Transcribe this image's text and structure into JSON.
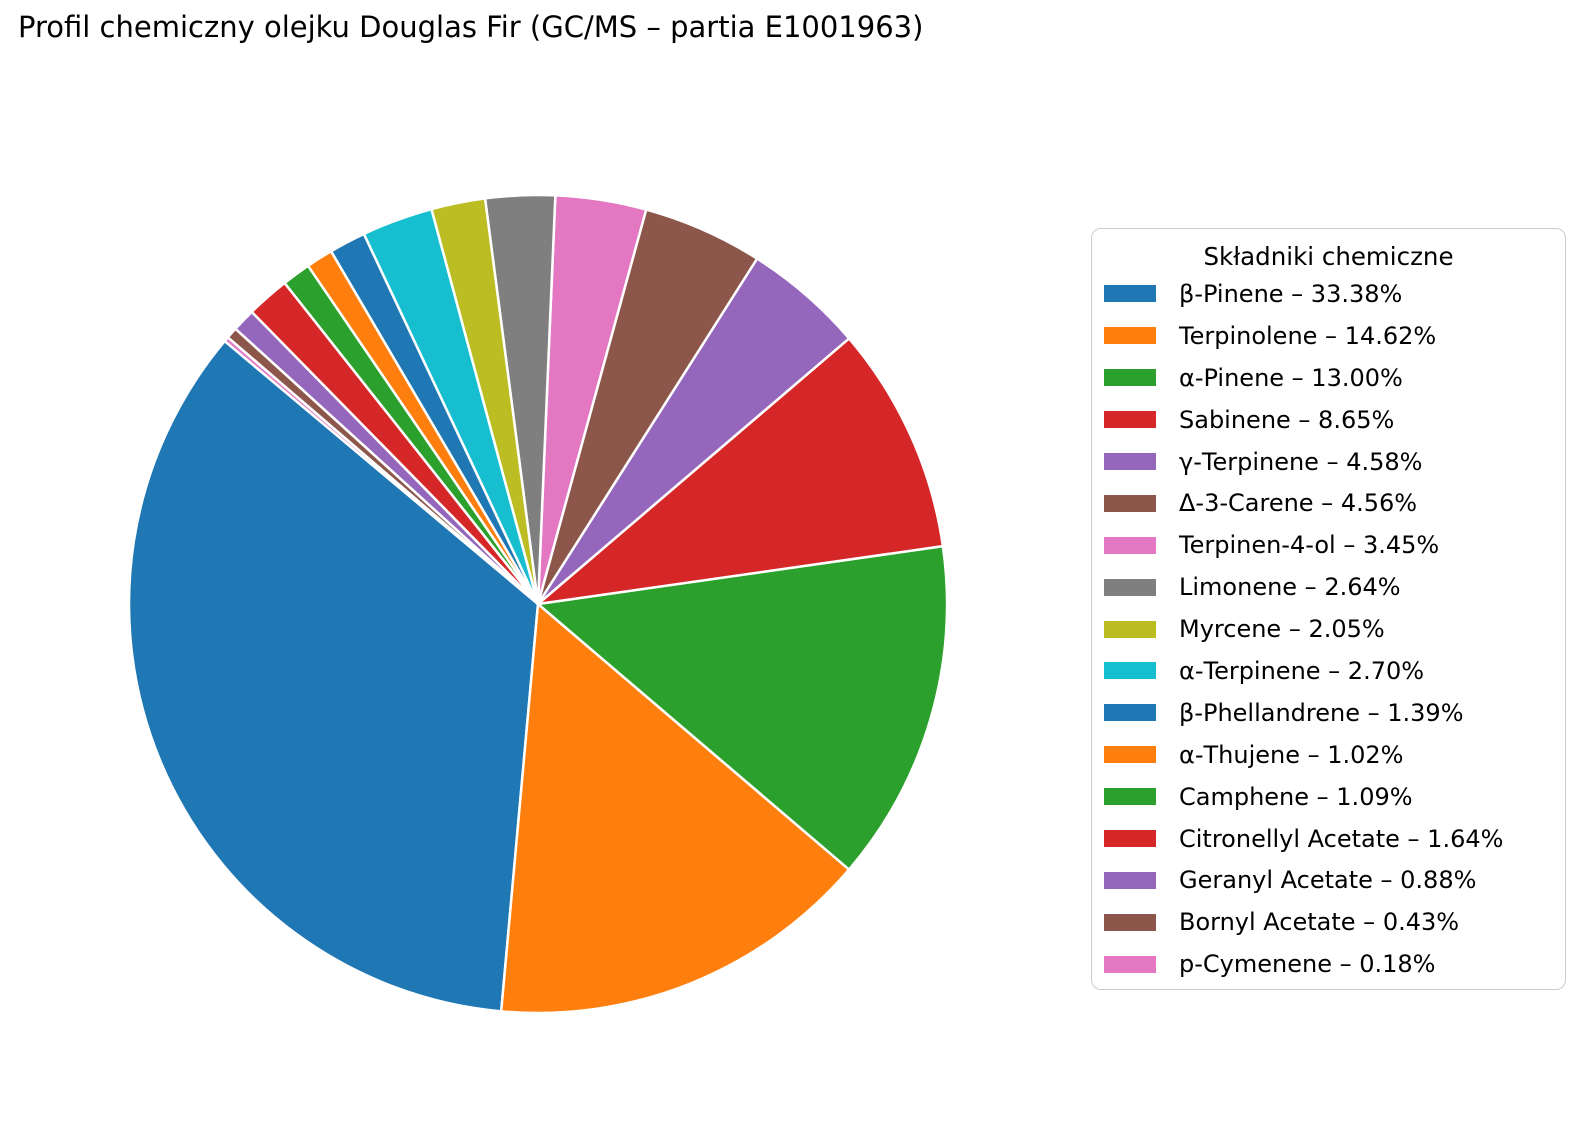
{
  "chart_data": {
    "type": "pie",
    "title": "Profil chemiczny olejku Douglas Fir (GC/MS – partia E1001963)",
    "legend": {
      "title": "Składniki chemiczne",
      "position": "right"
    },
    "pie": {
      "start_angle_deg": 140,
      "counterclockwise": true,
      "edge_color": "#ffffff",
      "edge_width": 2.5
    },
    "slices": [
      {
        "name": "β-Pinene",
        "value": 33.38,
        "color": "#1f77b4",
        "legend_label": "β-Pinene – 33.38%"
      },
      {
        "name": "Terpinolene",
        "value": 14.62,
        "color": "#ff7f0e",
        "legend_label": "Terpinolene – 14.62%"
      },
      {
        "name": "α-Pinene",
        "value": 13.0,
        "color": "#2ca02c",
        "legend_label": "α-Pinene – 13.00%"
      },
      {
        "name": "Sabinene",
        "value": 8.65,
        "color": "#d62728",
        "legend_label": "Sabinene – 8.65%"
      },
      {
        "name": "γ-Terpinene",
        "value": 4.58,
        "color": "#9467bd",
        "legend_label": "γ-Terpinene – 4.58%"
      },
      {
        "name": "Δ-3-Carene",
        "value": 4.56,
        "color": "#8c564b",
        "legend_label": "Δ-3-Carene – 4.56%"
      },
      {
        "name": "Terpinen-4-ol",
        "value": 3.45,
        "color": "#e377c2",
        "legend_label": "Terpinen-4-ol – 3.45%"
      },
      {
        "name": "Limonene",
        "value": 2.64,
        "color": "#7f7f7f",
        "legend_label": "Limonene – 2.64%"
      },
      {
        "name": "Myrcene",
        "value": 2.05,
        "color": "#bcbd22",
        "legend_label": "Myrcene – 2.05%"
      },
      {
        "name": "α-Terpinene",
        "value": 2.7,
        "color": "#17becf",
        "legend_label": "α-Terpinene – 2.70%"
      },
      {
        "name": "β-Phellandrene",
        "value": 1.39,
        "color": "#1f77b4",
        "legend_label": "β-Phellandrene – 1.39%"
      },
      {
        "name": "α-Thujene",
        "value": 1.02,
        "color": "#ff7f0e",
        "legend_label": "α-Thujene – 1.02%"
      },
      {
        "name": "Camphene",
        "value": 1.09,
        "color": "#2ca02c",
        "legend_label": "Camphene – 1.09%"
      },
      {
        "name": "Citronellyl Acetate",
        "value": 1.64,
        "color": "#d62728",
        "legend_label": "Citronellyl Acetate – 1.64%"
      },
      {
        "name": "Geranyl Acetate",
        "value": 0.88,
        "color": "#9467bd",
        "legend_label": "Geranyl Acetate – 0.88%"
      },
      {
        "name": "Bornyl Acetate",
        "value": 0.43,
        "color": "#8c564b",
        "legend_label": "Bornyl Acetate – 0.43%"
      },
      {
        "name": "p-Cymenene",
        "value": 0.18,
        "color": "#e377c2",
        "legend_label": "p-Cymenene – 0.18%"
      }
    ]
  }
}
